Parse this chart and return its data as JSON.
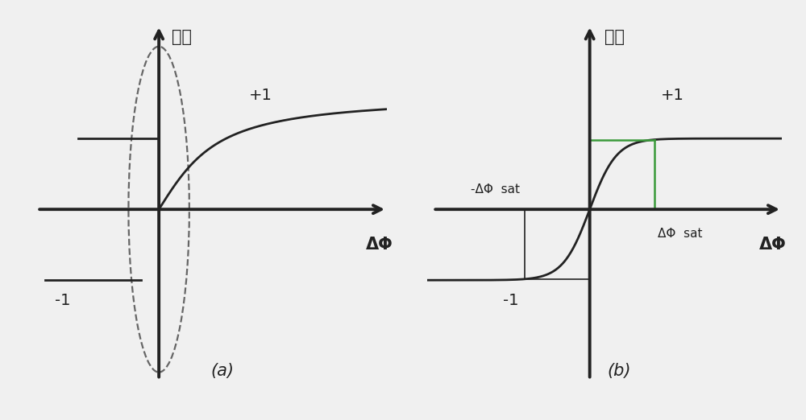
{
  "fig_width": 10.0,
  "fig_height": 5.22,
  "bg_color": "#f0f0f0",
  "axis_color": "#222222",
  "green_color": "#3a9a3a",
  "label_a": "(a)",
  "label_b": "(b)",
  "title_a": "输出",
  "title_b": "输出",
  "xlabel_a": "ΔΦ",
  "xlabel_b": "ΔΦ",
  "plus1_label": "+1",
  "minus1_label": "-1",
  "neg_delta_phi_sat": "-ΔΦ  sat",
  "pos_delta_phi_sat": "ΔΦ  sat",
  "font_size_label": 13,
  "font_size_axis_label": 14,
  "font_size_subfig": 14,
  "lw_axis": 2.8,
  "lw_curve": 2.0,
  "lw_lines": 2.0
}
